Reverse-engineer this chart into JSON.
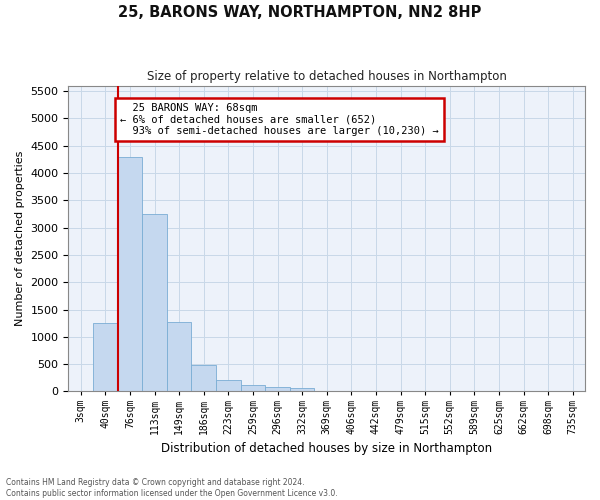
{
  "title": "25, BARONS WAY, NORTHAMPTON, NN2 8HP",
  "subtitle": "Size of property relative to detached houses in Northampton",
  "xlabel": "Distribution of detached houses by size in Northampton",
  "ylabel": "Number of detached properties",
  "bar_color": "#c5d8ef",
  "bar_edge_color": "#7aadd4",
  "grid_color": "#c8d8e8",
  "background_color": "#edf2fa",
  "categories": [
    "3sqm",
    "40sqm",
    "76sqm",
    "113sqm",
    "149sqm",
    "186sqm",
    "223sqm",
    "259sqm",
    "296sqm",
    "332sqm",
    "369sqm",
    "406sqm",
    "442sqm",
    "479sqm",
    "515sqm",
    "552sqm",
    "589sqm",
    "625sqm",
    "662sqm",
    "698sqm",
    "735sqm"
  ],
  "values": [
    0,
    1250,
    4300,
    3250,
    1270,
    480,
    210,
    110,
    90,
    70,
    0,
    0,
    0,
    0,
    0,
    0,
    0,
    0,
    0,
    0,
    0
  ],
  "ylim": [
    0,
    5600
  ],
  "yticks": [
    0,
    500,
    1000,
    1500,
    2000,
    2500,
    3000,
    3500,
    4000,
    4500,
    5000,
    5500
  ],
  "property_line_x": 1.5,
  "annotation_text": "  25 BARONS WAY: 68sqm\n← 6% of detached houses are smaller (652)\n  93% of semi-detached houses are larger (10,230) →",
  "annotation_box_color": "#ffffff",
  "annotation_box_edge": "#cc0000",
  "property_line_color": "#cc0000",
  "footer_line1": "Contains HM Land Registry data © Crown copyright and database right 2024.",
  "footer_line2": "Contains public sector information licensed under the Open Government Licence v3.0."
}
